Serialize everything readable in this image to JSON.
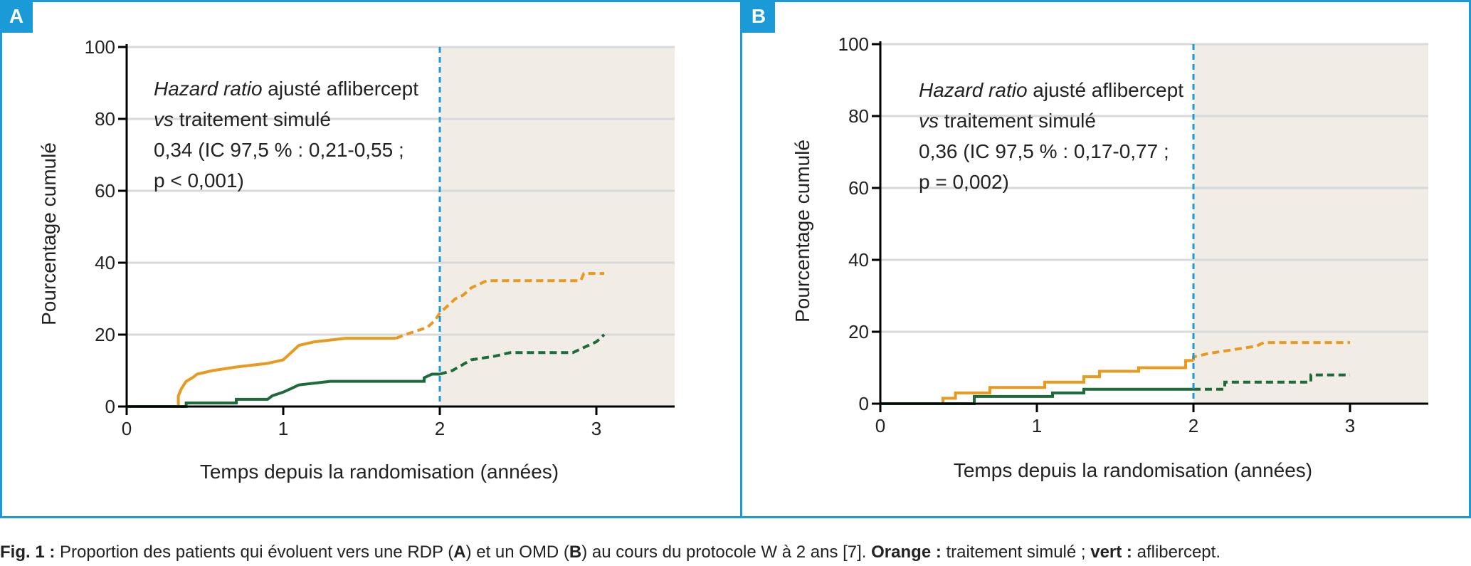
{
  "panels": [
    {
      "badge": "A",
      "annotation": [
        {
          "italic": "Hazard ratio",
          "rest": " ajusté aflibercept"
        },
        {
          "italic": "vs",
          "rest": " traitement simulé"
        },
        {
          "italic": "",
          "rest": "0,34 (IC 97,5 % : 0,21-0,55 ;"
        },
        {
          "italic": "",
          "rest": "p < 0,001)"
        }
      ]
    },
    {
      "badge": "B",
      "annotation": [
        {
          "italic": "Hazard ratio",
          "rest": " ajusté aflibercept"
        },
        {
          "italic": "vs",
          "rest": " traitement simulé"
        },
        {
          "italic": "",
          "rest": "0,36 (IC 97,5 % : 0,17-0,77 ;"
        },
        {
          "italic": "",
          "rest": "p = 0,002)"
        }
      ]
    }
  ],
  "colors": {
    "orange": "#e89a1e",
    "green": "#1c6b3a",
    "border": "#1a9ad6",
    "shade": "#f1ede6",
    "grid": "#d9d9d9",
    "cutoff": "#1a9ad6"
  },
  "caption": {
    "fig": "Fig. 1 :",
    "text1": " Proportion des patients qui évoluent vers une RDP (",
    "a": "A",
    "text2": ") et un OMD (",
    "b": "B",
    "text3": ") au cours du protocole W à 2 ans [7]. ",
    "orange": "Orange :",
    "text4": " traitement simulé ; ",
    "vert": "vert :",
    "text5": " aflibercept."
  },
  "chart_data": [
    {
      "type": "line",
      "panel": "A",
      "xlabel": "Temps depuis la randomisation (années)",
      "ylabel": "Pourcentage cumulé",
      "xlim": [
        0,
        3.5
      ],
      "ylim": [
        0,
        100
      ],
      "xticks": [
        "0",
        "1",
        "2",
        "3"
      ],
      "yticks": [
        "0",
        "20",
        "40",
        "60",
        "80",
        "100"
      ],
      "grid": true,
      "cutoff_x": 2,
      "shaded_region": [
        2,
        3.5
      ],
      "series": [
        {
          "color": "orange",
          "solid": [
            [
              0,
              0
            ],
            [
              0.33,
              0
            ],
            [
              0.33,
              3
            ],
            [
              0.35,
              5
            ],
            [
              0.38,
              7
            ],
            [
              0.42,
              8
            ],
            [
              0.45,
              9
            ],
            [
              0.55,
              10
            ],
            [
              0.7,
              11
            ],
            [
              0.9,
              12
            ],
            [
              1.0,
              13
            ],
            [
              1.05,
              15
            ],
            [
              1.1,
              17
            ],
            [
              1.2,
              18
            ],
            [
              1.4,
              19
            ],
            [
              1.72,
              19
            ]
          ],
          "dashed": [
            [
              1.72,
              19
            ],
            [
              1.78,
              20
            ],
            [
              1.85,
              21
            ],
            [
              1.92,
              22
            ],
            [
              1.97,
              24
            ],
            [
              2.0,
              26
            ],
            [
              2.05,
              28
            ],
            [
              2.1,
              30
            ],
            [
              2.15,
              31
            ],
            [
              2.2,
              33
            ],
            [
              2.25,
              34
            ],
            [
              2.3,
              35
            ],
            [
              2.5,
              35
            ],
            [
              2.9,
              35
            ],
            [
              2.92,
              37
            ],
            [
              3.05,
              37
            ]
          ]
        },
        {
          "color": "green",
          "solid": [
            [
              0,
              0
            ],
            [
              0.38,
              0
            ],
            [
              0.38,
              1
            ],
            [
              0.7,
              1
            ],
            [
              0.7,
              2
            ],
            [
              0.9,
              2
            ],
            [
              0.93,
              3
            ],
            [
              1.0,
              4
            ],
            [
              1.05,
              5
            ],
            [
              1.1,
              6
            ],
            [
              1.3,
              7
            ],
            [
              1.9,
              7
            ],
            [
              1.9,
              8
            ],
            [
              1.95,
              9
            ],
            [
              2.0,
              9
            ]
          ],
          "dashed": [
            [
              2.0,
              9
            ],
            [
              2.08,
              10
            ],
            [
              2.12,
              11
            ],
            [
              2.2,
              13
            ],
            [
              2.35,
              14
            ],
            [
              2.45,
              15
            ],
            [
              2.85,
              15
            ],
            [
              2.9,
              16
            ],
            [
              2.95,
              17
            ],
            [
              3.0,
              18
            ],
            [
              3.05,
              20
            ]
          ]
        }
      ]
    },
    {
      "type": "line",
      "panel": "B",
      "xlabel": "Temps depuis la randomisation (années)",
      "ylabel": "Pourcentage cumulé",
      "xlim": [
        0,
        3.5
      ],
      "ylim": [
        0,
        100
      ],
      "xticks": [
        "0",
        "1",
        "2",
        "3"
      ],
      "yticks": [
        "0",
        "20",
        "40",
        "60",
        "80",
        "100"
      ],
      "grid": true,
      "cutoff_x": 2,
      "shaded_region": [
        2,
        3.5
      ],
      "series": [
        {
          "color": "orange",
          "solid": [
            [
              0,
              0
            ],
            [
              0.4,
              0
            ],
            [
              0.4,
              1.5
            ],
            [
              0.48,
              1.5
            ],
            [
              0.48,
              3
            ],
            [
              0.7,
              3
            ],
            [
              0.7,
              4.5
            ],
            [
              1.05,
              4.5
            ],
            [
              1.05,
              6
            ],
            [
              1.3,
              6
            ],
            [
              1.3,
              7.5
            ],
            [
              1.4,
              7.5
            ],
            [
              1.4,
              9
            ],
            [
              1.65,
              9
            ],
            [
              1.65,
              10
            ],
            [
              1.95,
              10
            ],
            [
              1.95,
              12
            ],
            [
              2.0,
              12
            ]
          ],
          "dashed": [
            [
              2.0,
              12
            ],
            [
              2.0,
              13
            ],
            [
              2.1,
              14
            ],
            [
              2.25,
              15
            ],
            [
              2.4,
              16
            ],
            [
              2.45,
              17
            ],
            [
              3.0,
              17
            ]
          ]
        },
        {
          "color": "green",
          "solid": [
            [
              0,
              0
            ],
            [
              0.6,
              0
            ],
            [
              0.6,
              2
            ],
            [
              1.1,
              2
            ],
            [
              1.1,
              3
            ],
            [
              1.3,
              3
            ],
            [
              1.3,
              4
            ],
            [
              2.0,
              4
            ]
          ],
          "dashed": [
            [
              2.0,
              4
            ],
            [
              2.2,
              4
            ],
            [
              2.2,
              6
            ],
            [
              2.75,
              6
            ],
            [
              2.75,
              8
            ],
            [
              3.0,
              8
            ]
          ]
        }
      ]
    }
  ]
}
